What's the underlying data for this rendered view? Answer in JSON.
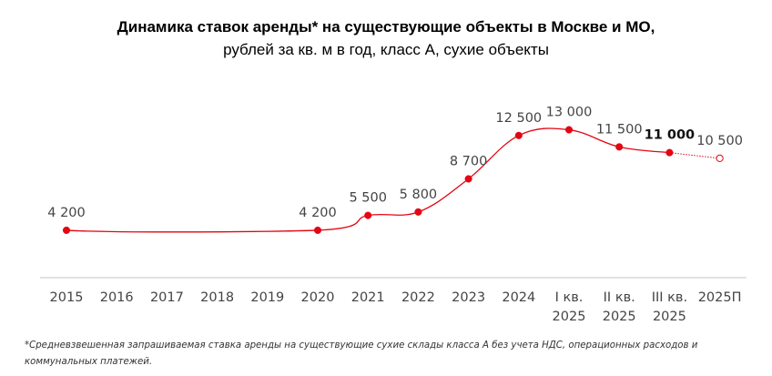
{
  "chart_data": {
    "type": "line",
    "title": "Динамика ставок аренды* на существующие объекты в Москве и МО,",
    "subtitle": "рублей за кв. м в год, класс А, сухие объекты",
    "categories": [
      "2015",
      "2016",
      "2017",
      "2018",
      "2019",
      "2020",
      "2021",
      "2022",
      "2023",
      "2024",
      "I кв. 2025",
      "II кв. 2025",
      "III кв. 2025",
      "2025П"
    ],
    "category_lines": [
      [
        "2015"
      ],
      [
        "2016"
      ],
      [
        "2017"
      ],
      [
        "2018"
      ],
      [
        "2019"
      ],
      [
        "2020"
      ],
      [
        "2021"
      ],
      [
        "2022"
      ],
      [
        "2023"
      ],
      [
        "2024"
      ],
      [
        "I кв.",
        "2025"
      ],
      [
        "II кв.",
        "2025"
      ],
      [
        "III кв.",
        "2025"
      ],
      [
        "2025П"
      ]
    ],
    "values": [
      4200,
      null,
      null,
      null,
      null,
      4200,
      5500,
      5800,
      8700,
      12500,
      13000,
      11500,
      11000,
      10500
    ],
    "data_labels": [
      "4 200",
      "",
      "",
      "",
      "",
      "4 200",
      "5 500",
      "5 800",
      "8 700",
      "12 500",
      "13 000",
      "11 500",
      "11 000",
      "10 500"
    ],
    "highlighted_label": "11 000",
    "forecast_category": "2025П",
    "ylim": [
      0,
      14000
    ],
    "grid": false,
    "legend": "none",
    "xlabel": "",
    "ylabel": "",
    "line_color": "#e30613",
    "marker_color": "#e30613"
  },
  "footnote": "*Средневзвешенная запрашиваемая ставка аренды на существующие сухие склады класса А без учета НДС, операционных расходов и коммунальных платежей."
}
